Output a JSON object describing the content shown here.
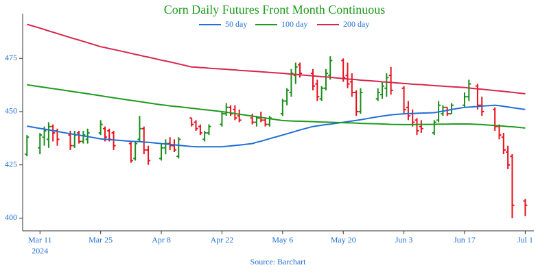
{
  "chart_data": {
    "type": "ohlc",
    "title": "Corn Daily Futures Front Month Continuous",
    "source": "Source: Barchart",
    "x": [
      "2024-03-08",
      "2024-03-11",
      "2024-03-12",
      "2024-03-13",
      "2024-03-14",
      "2024-03-15",
      "2024-03-18",
      "2024-03-19",
      "2024-03-20",
      "2024-03-21",
      "2024-03-22",
      "2024-03-25",
      "2024-03-26",
      "2024-03-27",
      "2024-03-28",
      "2024-04-01",
      "2024-04-02",
      "2024-04-03",
      "2024-04-04",
      "2024-04-05",
      "2024-04-08",
      "2024-04-09",
      "2024-04-10",
      "2024-04-11",
      "2024-04-12",
      "2024-04-15",
      "2024-04-16",
      "2024-04-17",
      "2024-04-18",
      "2024-04-19",
      "2024-04-22",
      "2024-04-23",
      "2024-04-24",
      "2024-04-25",
      "2024-04-26",
      "2024-04-29",
      "2024-04-30",
      "2024-05-01",
      "2024-05-02",
      "2024-05-03",
      "2024-05-06",
      "2024-05-07",
      "2024-05-08",
      "2024-05-09",
      "2024-05-10",
      "2024-05-13",
      "2024-05-14",
      "2024-05-15",
      "2024-05-16",
      "2024-05-17",
      "2024-05-20",
      "2024-05-21",
      "2024-05-22",
      "2024-05-23",
      "2024-05-24",
      "2024-05-28",
      "2024-05-29",
      "2024-05-30",
      "2024-05-31",
      "2024-06-03",
      "2024-06-04",
      "2024-06-05",
      "2024-06-06",
      "2024-06-07",
      "2024-06-10",
      "2024-06-11",
      "2024-06-12",
      "2024-06-13",
      "2024-06-14",
      "2024-06-17",
      "2024-06-18",
      "2024-06-20",
      "2024-06-21",
      "2024-06-24",
      "2024-06-25",
      "2024-06-26",
      "2024-06-27",
      "2024-06-28",
      "2024-07-01"
    ],
    "open": [
      430,
      433,
      438,
      437,
      443,
      441,
      439,
      434,
      440,
      436,
      437,
      440,
      442,
      441,
      440,
      435,
      428,
      437,
      442,
      432,
      428,
      433,
      435,
      434,
      429,
      447,
      445,
      443,
      437,
      440,
      444,
      449,
      452,
      451,
      448,
      447,
      445,
      447,
      446,
      444,
      449,
      455,
      459,
      467,
      472,
      468,
      463,
      456,
      461,
      467,
      474,
      467,
      464,
      459,
      450,
      456,
      458,
      461,
      467,
      461,
      452,
      449,
      446,
      443,
      440,
      446,
      449,
      452,
      449,
      453,
      457,
      462,
      453,
      451,
      443,
      438,
      431,
      429,
      408
    ],
    "high": [
      439,
      440,
      443,
      445,
      444,
      442,
      441,
      441,
      441,
      441,
      442,
      446,
      443,
      442,
      441,
      436,
      436,
      448,
      443,
      434,
      435,
      437,
      438,
      437,
      438,
      447,
      446,
      444,
      441,
      444,
      450,
      454,
      453,
      453,
      451,
      449,
      448,
      450,
      447,
      448,
      456,
      461,
      470,
      473,
      473,
      470,
      465,
      462,
      470,
      476,
      475,
      473,
      468,
      460,
      461,
      461,
      464,
      468,
      471,
      462,
      455,
      451,
      447,
      446,
      446,
      455,
      453,
      452,
      454,
      459,
      465,
      463,
      457,
      452,
      444,
      440,
      434,
      430,
      409
    ],
    "low": [
      429,
      430,
      434,
      433,
      436,
      434,
      432,
      433,
      435,
      435,
      435,
      439,
      436,
      436,
      432,
      426,
      427,
      436,
      430,
      425,
      427,
      430,
      432,
      431,
      428,
      443,
      441,
      439,
      436,
      439,
      443,
      448,
      448,
      446,
      445,
      444,
      443,
      445,
      443,
      443,
      448,
      453,
      457,
      463,
      466,
      460,
      455,
      455,
      460,
      465,
      464,
      461,
      457,
      448,
      449,
      455,
      456,
      457,
      458,
      449,
      446,
      443,
      439,
      440,
      439,
      445,
      448,
      448,
      449,
      452,
      455,
      451,
      448,
      441,
      437,
      430,
      423,
      400,
      401
    ],
    "close": [
      438,
      439,
      441,
      443,
      440,
      437,
      434,
      439,
      436,
      439,
      440,
      444,
      438,
      437,
      434,
      427,
      435,
      442,
      432,
      427,
      433,
      435,
      434,
      432,
      437,
      444,
      442,
      440,
      440,
      443,
      449,
      452,
      449,
      447,
      446,
      445,
      447,
      446,
      444,
      447,
      455,
      460,
      468,
      471,
      468,
      462,
      457,
      461,
      468,
      474,
      466,
      463,
      459,
      450,
      459,
      459,
      462,
      466,
      460,
      451,
      448,
      445,
      441,
      442,
      445,
      453,
      452,
      449,
      453,
      457,
      463,
      453,
      450,
      443,
      439,
      432,
      425,
      406,
      406
    ],
    "up_color": "#1a8c1a",
    "down_color": "#e8101c",
    "series": [
      {
        "name": "50 day",
        "color": "#1f6fd6",
        "values": [
          443.2,
          442.1,
          441.8,
          441.4,
          441.1,
          440.7,
          439.6,
          439.3,
          439,
          438.6,
          438.3,
          437.2,
          437,
          436.9,
          436.7,
          436.1,
          436,
          435.9,
          435.7,
          435.6,
          435,
          434.8,
          434.6,
          434.4,
          434.2,
          433.6,
          433.5,
          433.5,
          433.5,
          433.5,
          433.5,
          433.7,
          433.9,
          434.1,
          434.3,
          435,
          435.6,
          436.1,
          436.7,
          437.3,
          439,
          439.6,
          440.2,
          440.8,
          441.4,
          443,
          443.3,
          443.6,
          443.9,
          444.1,
          445,
          445.3,
          445.6,
          445.9,
          446.2,
          447.6,
          447.9,
          448.2,
          448.5,
          449,
          449.1,
          449.1,
          449.2,
          449.3,
          449.5,
          449.9,
          450.2,
          450.6,
          451,
          452,
          452.1,
          452.4,
          452.6,
          453,
          452.8,
          452.5,
          452.2,
          451.9,
          451
        ]
      },
      {
        "name": "100 day",
        "color": "#1e9a1e",
        "values": [
          462.6,
          461.7,
          461.4,
          461.1,
          460.8,
          460.5,
          459.6,
          459.3,
          459,
          458.7,
          458.4,
          457.5,
          457.1,
          456.8,
          456.5,
          455.3,
          455,
          454.7,
          454.4,
          454.1,
          453.2,
          453,
          452.7,
          452.5,
          452.3,
          451.6,
          451.4,
          451.1,
          450.9,
          450.7,
          450,
          449.7,
          449.4,
          449.1,
          448.8,
          447.9,
          447.6,
          447.3,
          447,
          446.7,
          445.8,
          445.7,
          445.6,
          445.5,
          445.5,
          445.3,
          445.2,
          445.1,
          445.1,
          445,
          444.8,
          444.7,
          444.7,
          444.6,
          444.5,
          444.3,
          444.2,
          444.1,
          444,
          443.9,
          443.9,
          443.9,
          444,
          444,
          444,
          444.1,
          444.1,
          444.1,
          444.2,
          444.2,
          444.2,
          444,
          443.9,
          443.5,
          443.3,
          443.2,
          443,
          442.9,
          442.3
        ]
      },
      {
        "name": "200 day",
        "color": "#d6284a",
        "values": [
          491,
          489.2,
          488.6,
          487.9,
          487.3,
          486.7,
          484.8,
          484.2,
          483.6,
          483,
          482.4,
          480.5,
          480.1,
          479.6,
          479.2,
          477.4,
          476.9,
          476.5,
          476,
          475.6,
          474.2,
          473.8,
          473.3,
          472.9,
          472.4,
          471,
          470.9,
          470.7,
          470.6,
          470.4,
          470,
          469.9,
          469.7,
          469.6,
          469.4,
          469,
          468.9,
          468.7,
          468.6,
          468.4,
          468,
          467.8,
          467.6,
          467.5,
          467.3,
          466.8,
          466.6,
          466.4,
          466.3,
          466.1,
          465.5,
          465.3,
          465.2,
          465,
          464.8,
          464.2,
          464,
          463.9,
          463.7,
          463.2,
          463.1,
          462.9,
          462.8,
          462.7,
          462.2,
          462.1,
          462,
          461.8,
          461.7,
          461.3,
          461.1,
          460.7,
          460.5,
          459.9,
          459.7,
          459.5,
          459.3,
          459.1,
          458.4
        ]
      }
    ],
    "xlim": [
      "2024-03-07",
      "2024-07-03"
    ],
    "xticks": [
      {
        "value": "2024-03-11",
        "label": "Mar 11"
      },
      {
        "value": "2024-03-25",
        "label": "Mar 25"
      },
      {
        "value": "2024-04-08",
        "label": "Apr 8"
      },
      {
        "value": "2024-04-22",
        "label": "Apr 22"
      },
      {
        "value": "2024-05-06",
        "label": "May 6"
      },
      {
        "value": "2024-05-20",
        "label": "May 20"
      },
      {
        "value": "2024-06-03",
        "label": "Jun 3"
      },
      {
        "value": "2024-06-17",
        "label": "Jun 17"
      },
      {
        "value": "2024-07-01",
        "label": "Jul 1"
      }
    ],
    "xtick_year": "2024",
    "ylim": [
      394,
      496
    ],
    "yticks": [
      400,
      425,
      450,
      475
    ]
  }
}
